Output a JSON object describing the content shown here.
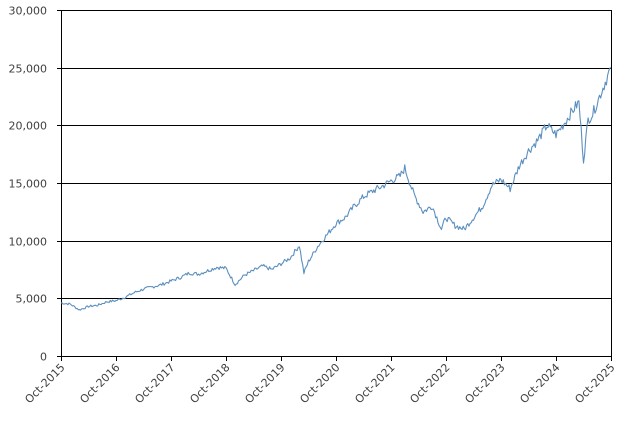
{
  "chart_data": {
    "type": "line",
    "title": "",
    "xlabel": "",
    "ylabel": "",
    "ylim": [
      0,
      30000
    ],
    "yticks": [
      0,
      5000,
      10000,
      15000,
      20000,
      25000,
      30000
    ],
    "ytick_labels": [
      "0",
      "5,000",
      "10,000",
      "15,000",
      "20,000",
      "25,000",
      "30,000"
    ],
    "xlim": [
      "2015-10",
      "2025-10"
    ],
    "xticks": [
      "2015-10",
      "2016-10",
      "2017-10",
      "2018-10",
      "2019-10",
      "2020-10",
      "2021-10",
      "2022-10",
      "2023-10",
      "2024-10",
      "2025-10"
    ],
    "xtick_labels": [
      "Oct-2015",
      "Oct-2016",
      "Oct-2017",
      "Oct-2018",
      "Oct-2019",
      "Oct-2020",
      "Oct-2021",
      "Oct-2022",
      "Oct-2023",
      "Oct-2024",
      "Oct-2025"
    ],
    "grid": "horizontal",
    "legend": "none",
    "series": [
      {
        "color": "#5b8fbf",
        "x": [
          "2015-10",
          "2015-12",
          "2016-02",
          "2016-04",
          "2016-06",
          "2016-08",
          "2016-10",
          "2016-12",
          "2017-02",
          "2017-04",
          "2017-06",
          "2017-08",
          "2017-10",
          "2017-12",
          "2018-02",
          "2018-04",
          "2018-06",
          "2018-08",
          "2018-10",
          "2018-12",
          "2019-02",
          "2019-04",
          "2019-06",
          "2019-08",
          "2019-10",
          "2019-12",
          "2020-02",
          "2020-03",
          "2020-04",
          "2020-06",
          "2020-08",
          "2020-10",
          "2020-12",
          "2021-02",
          "2021-04",
          "2021-06",
          "2021-08",
          "2021-10",
          "2021-12",
          "2022-01",
          "2022-03",
          "2022-05",
          "2022-07",
          "2022-09",
          "2022-10",
          "2022-12",
          "2023-02",
          "2023-04",
          "2023-06",
          "2023-08",
          "2023-10",
          "2023-12",
          "2024-02",
          "2024-04",
          "2024-06",
          "2024-08",
          "2024-10",
          "2024-12",
          "2025-02",
          "2025-03",
          "2025-04",
          "2025-05",
          "2025-06",
          "2025-08",
          "2025-10"
        ],
        "values": [
          4600,
          4500,
          4000,
          4300,
          4400,
          4700,
          4800,
          5100,
          5500,
          5800,
          6000,
          6200,
          6500,
          6800,
          7200,
          7100,
          7400,
          7700,
          7600,
          6200,
          7000,
          7400,
          7800,
          7500,
          8000,
          8500,
          9600,
          7200,
          8200,
          9500,
          10500,
          11500,
          12000,
          13000,
          13800,
          14300,
          14700,
          15200,
          15600,
          16300,
          14000,
          12500,
          13000,
          11000,
          12000,
          11300,
          11000,
          12000,
          13000,
          14800,
          15300,
          14500,
          16500,
          17800,
          18700,
          20000,
          19200,
          20300,
          21500,
          22000,
          17000,
          20500,
          21000,
          23000,
          25000
        ]
      }
    ]
  }
}
